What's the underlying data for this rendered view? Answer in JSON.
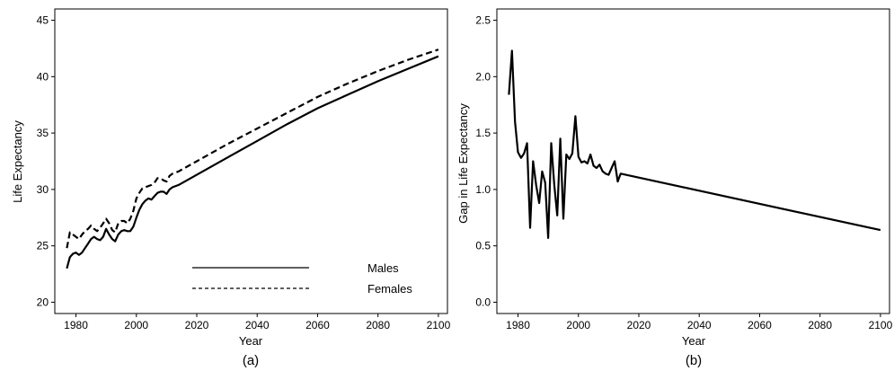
{
  "chart_data": [
    {
      "type": "line",
      "panel_label": "(a)",
      "title": "",
      "xlabel": "Year",
      "ylabel": "Life Expectancy",
      "xlim": [
        1973,
        2103
      ],
      "ylim": [
        19,
        46
      ],
      "xticks": [
        1980,
        2000,
        2020,
        2040,
        2060,
        2080,
        2100
      ],
      "yticks": [
        20,
        25,
        30,
        35,
        40,
        45
      ],
      "grid": false,
      "legend_placement": "bottom-center",
      "series": [
        {
          "name": "Males",
          "style": "solid",
          "x": [
            1977,
            1978,
            1979,
            1980,
            1981,
            1982,
            1983,
            1984,
            1985,
            1986,
            1987,
            1988,
            1989,
            1990,
            1991,
            1992,
            1993,
            1994,
            1995,
            1996,
            1997,
            1998,
            1999,
            2000,
            2001,
            2002,
            2003,
            2004,
            2005,
            2006,
            2007,
            2008,
            2009,
            2010,
            2011,
            2012,
            2013,
            2014,
            2020,
            2030,
            2040,
            2050,
            2060,
            2070,
            2080,
            2090,
            2100
          ],
          "values": [
            23.0,
            24.0,
            24.3,
            24.4,
            24.2,
            24.4,
            24.8,
            25.2,
            25.6,
            25.8,
            25.6,
            25.5,
            25.8,
            26.5,
            26.0,
            25.6,
            25.4,
            26.0,
            26.3,
            26.4,
            26.3,
            26.3,
            26.7,
            27.5,
            28.2,
            28.7,
            29.0,
            29.2,
            29.1,
            29.4,
            29.7,
            29.8,
            29.8,
            29.6,
            30.0,
            30.2,
            30.3,
            30.4,
            31.3,
            32.8,
            34.3,
            35.8,
            37.2,
            38.4,
            39.6,
            40.7,
            41.8
          ]
        },
        {
          "name": "Females",
          "style": "dashed",
          "x": [
            1977,
            1978,
            1979,
            1980,
            1981,
            1982,
            1983,
            1984,
            1985,
            1986,
            1987,
            1988,
            1989,
            1990,
            1991,
            1992,
            1993,
            1994,
            1995,
            1996,
            1997,
            1998,
            1999,
            2000,
            2001,
            2002,
            2003,
            2004,
            2005,
            2006,
            2007,
            2008,
            2009,
            2010,
            2011,
            2012,
            2013,
            2014,
            2020,
            2030,
            2040,
            2050,
            2060,
            2070,
            2080,
            2090,
            2100
          ],
          "values": [
            24.8,
            26.2,
            26.0,
            25.8,
            25.6,
            26.0,
            26.3,
            26.5,
            26.8,
            26.5,
            26.3,
            26.6,
            27.0,
            27.4,
            27.0,
            26.4,
            26.2,
            27.0,
            27.2,
            27.2,
            27.0,
            27.4,
            28.1,
            29.2,
            29.7,
            30.1,
            30.2,
            30.3,
            30.4,
            30.6,
            31.0,
            31.0,
            30.8,
            30.7,
            31.2,
            31.4,
            31.5,
            31.6,
            32.5,
            34.0,
            35.4,
            36.8,
            38.2,
            39.4,
            40.5,
            41.5,
            42.4
          ]
        }
      ]
    },
    {
      "type": "line",
      "panel_label": "(b)",
      "title": "",
      "xlabel": "Year",
      "ylabel": "Gap in Life Expectancy",
      "xlim": [
        1973,
        2103
      ],
      "ylim": [
        -0.1,
        2.6
      ],
      "xticks": [
        1980,
        2000,
        2020,
        2040,
        2060,
        2080,
        2100
      ],
      "yticks": [
        "0.0",
        "0.5",
        "1.0",
        "1.5",
        "2.0",
        "2.5"
      ],
      "grid": false,
      "series": [
        {
          "style": "solid",
          "x": [
            1977,
            1978,
            1979,
            1980,
            1981,
            1982,
            1983,
            1984,
            1985,
            1986,
            1987,
            1988,
            1989,
            1990,
            1991,
            1992,
            1993,
            1994,
            1995,
            1996,
            1997,
            1998,
            1999,
            2000,
            2001,
            2002,
            2003,
            2004,
            2005,
            2006,
            2007,
            2008,
            2009,
            2010,
            2011,
            2012,
            2013,
            2014,
            2100
          ],
          "values": [
            1.84,
            2.23,
            1.6,
            1.33,
            1.28,
            1.32,
            1.41,
            0.66,
            1.25,
            1.04,
            0.88,
            1.16,
            1.06,
            0.57,
            1.41,
            1.04,
            0.77,
            1.45,
            0.74,
            1.31,
            1.27,
            1.32,
            1.65,
            1.29,
            1.24,
            1.25,
            1.23,
            1.31,
            1.21,
            1.19,
            1.22,
            1.16,
            1.14,
            1.13,
            1.19,
            1.25,
            1.07,
            1.14,
            0.64
          ]
        }
      ]
    }
  ],
  "legend": {
    "males_label": "Males",
    "females_label": "Females"
  }
}
